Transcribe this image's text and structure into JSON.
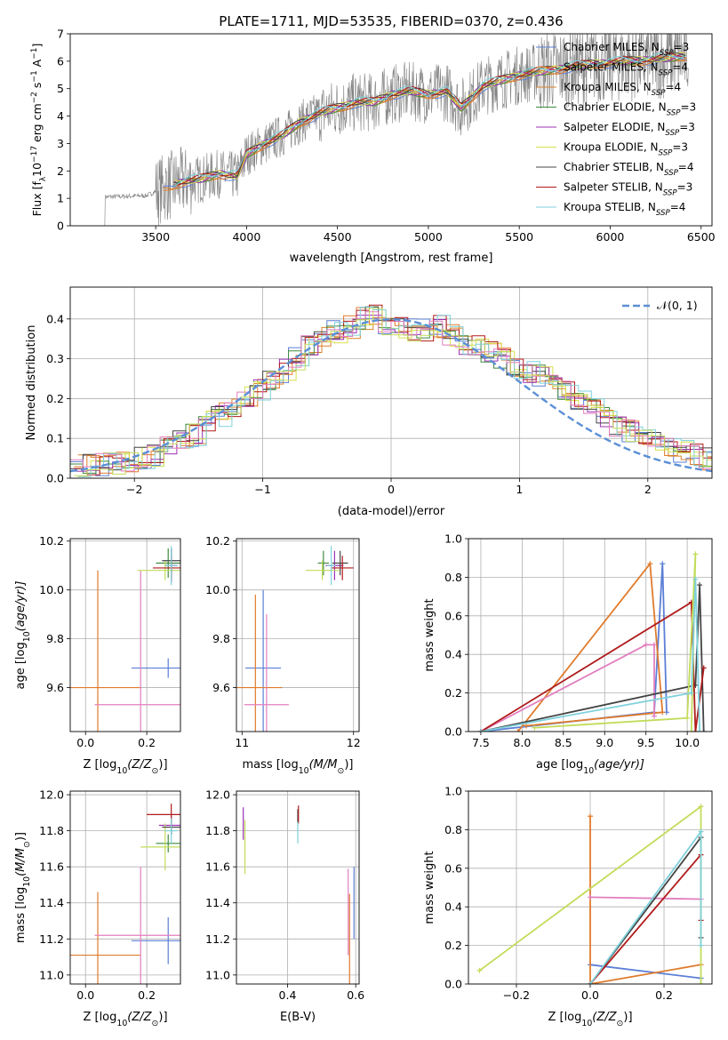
{
  "title": "PLATE=1711, MJD=53535, FIBERID=0370, z=0.436",
  "colors": {
    "chabrier_miles": "#5b7fd6",
    "salpeter_miles": "#e07b2c",
    "kroupa_miles": "#d9822b",
    "chabrier_elodie": "#3f8a3f",
    "salpeter_elodie": "#9b30b5",
    "kroupa_elodie": "#d7e04a",
    "chabrier_stelib": "#444444",
    "salpeter_stelib": "#b01b1b",
    "kroupa_stelib": "#7fd1dc",
    "pink": "#e27fbf",
    "lime": "#c2dc5a",
    "data": "#808080",
    "normal": "#5a8fd6"
  },
  "chart_data": [
    {
      "id": "spectrum",
      "type": "line",
      "xlabel": "wavelength [Angstrom, rest frame]",
      "ylabel": "Flux [f",
      "ylabel_sub": "λ",
      "ylabel_rest": "10",
      "ylabel_sup1": "−17",
      "ylabel_mid": " erg cm",
      "ylabel_sup2": "−2",
      "ylabel_mid2": " s",
      "ylabel_sup3": "−1",
      "ylabel_mid3": " A",
      "ylabel_sup4": "−1",
      "ylabel_end": "]",
      "xlim": [
        3030,
        6560
      ],
      "ylim": [
        0,
        7
      ],
      "xticks": [
        "3500",
        "4000",
        "4500",
        "5000",
        "5500",
        "6000",
        "6500"
      ],
      "xtick_vals": [
        3500,
        4000,
        4500,
        5000,
        5500,
        6000,
        6500
      ],
      "yticks": [
        "0",
        "1",
        "2",
        "3",
        "4",
        "5",
        "6",
        "7"
      ],
      "ytick_vals": [
        0,
        1,
        2,
        3,
        4,
        5,
        6,
        7
      ],
      "legend_position": "top-right",
      "legend": [
        {
          "name": "Chabrier MILES, N",
          "sub": "SSP",
          "val": "=3",
          "color": "chabrier_miles"
        },
        {
          "name": "Salpeter MILES, N",
          "sub": "SSP",
          "val": "=4",
          "color": "salpeter_miles"
        },
        {
          "name": "Kroupa MILES, N",
          "sub": "SSP",
          "val": "=4",
          "color": "kroupa_miles"
        },
        {
          "name": "Chabrier ELODIE, N",
          "sub": "SSP",
          "val": "=3",
          "color": "chabrier_elodie"
        },
        {
          "name": "Salpeter ELODIE, N",
          "sub": "SSP",
          "val": "=3",
          "color": "salpeter_elodie"
        },
        {
          "name": "Kroupa ELODIE, N",
          "sub": "SSP",
          "val": "=3",
          "color": "kroupa_elodie"
        },
        {
          "name": "Chabrier STELIB, N",
          "sub": "SSP",
          "val": "=4",
          "color": "chabrier_stelib"
        },
        {
          "name": "Salpeter STELIB, N",
          "sub": "SSP",
          "val": "=3",
          "color": "salpeter_stelib"
        },
        {
          "name": "Kroupa STELIB, N",
          "sub": "SSP",
          "val": "=4",
          "color": "kroupa_stelib"
        }
      ],
      "model_trend": [
        [
          3220,
          1.05
        ],
        [
          3450,
          1.1
        ],
        [
          3550,
          1.4
        ],
        [
          3650,
          1.6
        ],
        [
          3750,
          1.7
        ],
        [
          3850,
          1.9
        ],
        [
          3950,
          1.8
        ],
        [
          4000,
          2.6
        ],
        [
          4100,
          3.0
        ],
        [
          4200,
          3.3
        ],
        [
          4300,
          3.8
        ],
        [
          4400,
          4.1
        ],
        [
          4500,
          4.3
        ],
        [
          4600,
          4.5
        ],
        [
          4700,
          4.5
        ],
        [
          4800,
          4.8
        ],
        [
          4900,
          4.9
        ],
        [
          5000,
          4.8
        ],
        [
          5100,
          4.9
        ],
        [
          5180,
          4.3
        ],
        [
          5300,
          5.1
        ],
        [
          5500,
          5.5
        ],
        [
          5700,
          5.7
        ],
        [
          5900,
          5.9
        ],
        [
          6100,
          6.0
        ],
        [
          6300,
          6.1
        ],
        [
          6420,
          6.2
        ]
      ]
    },
    {
      "id": "residuals",
      "type": "line",
      "xlabel": "(data-model)/error",
      "ylabel": "Normed distribution",
      "xlim": [
        -2.5,
        2.5
      ],
      "ylim": [
        0,
        0.48
      ],
      "xticks": [
        "−2",
        "−1",
        "0",
        "1",
        "2"
      ],
      "xtick_vals": [
        -2,
        -1,
        0,
        1,
        2
      ],
      "yticks": [
        "0.0",
        "0.1",
        "0.2",
        "0.3",
        "0.4"
      ],
      "ytick_vals": [
        0,
        0.1,
        0.2,
        0.3,
        0.4
      ],
      "legend_position": "top-right",
      "legend_label": "𝒩(0, 1)",
      "bin_width": 0.1,
      "hist_base": [
        0.03,
        0.032,
        0.035,
        0.04,
        0.045,
        0.05,
        0.06,
        0.08,
        0.1,
        0.11,
        0.14,
        0.16,
        0.18,
        0.2,
        0.22,
        0.24,
        0.27,
        0.3,
        0.33,
        0.35,
        0.37,
        0.38,
        0.4,
        0.41,
        0.39,
        0.38,
        0.37,
        0.37,
        0.38,
        0.36,
        0.34,
        0.33,
        0.32,
        0.3,
        0.28,
        0.27,
        0.26,
        0.24,
        0.22,
        0.19,
        0.17,
        0.15,
        0.13,
        0.12,
        0.1,
        0.09,
        0.08,
        0.07,
        0.06,
        0.05
      ]
    },
    {
      "id": "age_vs_Z",
      "type": "scatter",
      "xlabel": "Z [log",
      "xlabel_sub": "10",
      "xlabel_rest": "(Z/Z",
      "xlabel_sub2": "⊙",
      "xlabel_end": ")]",
      "ylabel": "age  [log",
      "ylabel_sub": "10",
      "ylabel_rest": "(age/yr)]",
      "xlim": [
        -0.05,
        0.31
      ],
      "ylim": [
        9.42,
        10.21
      ],
      "xticks": [
        "0.0",
        "0.2"
      ],
      "xtick_vals": [
        0,
        0.2
      ],
      "yticks": [
        "9.6",
        "9.8",
        "10.0",
        "10.2"
      ],
      "ytick_vals": [
        9.6,
        9.8,
        10.0,
        10.2
      ],
      "points": [
        {
          "x": 0.27,
          "y": 9.68,
          "xerr": 0.12,
          "yerr": 0.04,
          "color": "chabrier_miles"
        },
        {
          "x": 0.04,
          "y": 9.6,
          "xerr": 0.14,
          "yerr": 0.48,
          "color": "salpeter_miles"
        },
        {
          "x": 0.18,
          "y": 9.53,
          "xerr": 0.15,
          "yerr": 0.55,
          "color": "pink"
        },
        {
          "x": 0.27,
          "y": 10.11,
          "xerr": 0.04,
          "yerr": 0.06,
          "color": "chabrier_elodie"
        },
        {
          "x": 0.28,
          "y": 10.1,
          "xerr": 0.02,
          "yerr": 0.07,
          "color": "salpeter_elodie"
        },
        {
          "x": 0.26,
          "y": 10.08,
          "xerr": 0.09,
          "yerr": 0.04,
          "color": "lime"
        },
        {
          "x": 0.28,
          "y": 10.12,
          "xerr": 0.03,
          "yerr": 0.05,
          "color": "chabrier_stelib"
        },
        {
          "x": 0.28,
          "y": 10.09,
          "xerr": 0.06,
          "yerr": 0.05,
          "color": "salpeter_stelib"
        },
        {
          "x": 0.28,
          "y": 10.1,
          "xerr": 0.02,
          "yerr": 0.08,
          "color": "kroupa_stelib"
        }
      ]
    },
    {
      "id": "age_vs_mass",
      "type": "scatter",
      "xlabel": "mass [log",
      "xlabel_sub": "10",
      "xlabel_rest": "(M/M",
      "xlabel_sub2": "⊙",
      "xlabel_end": ")]",
      "xlim": [
        10.95,
        12.05
      ],
      "ylim": [
        9.42,
        10.21
      ],
      "xticks": [
        "11",
        "12"
      ],
      "xtick_vals": [
        11,
        12
      ],
      "yticks": [
        "9.6",
        "9.8",
        "10.0",
        "10.2"
      ],
      "ytick_vals": [
        9.6,
        9.8,
        10.0,
        10.2
      ],
      "points": [
        {
          "x": 11.19,
          "y": 9.68,
          "xerr": 0.16,
          "yerr": 0.32,
          "color": "chabrier_miles"
        },
        {
          "x": 11.12,
          "y": 9.6,
          "xerr": 0.24,
          "yerr": 0.38,
          "color": "salpeter_miles"
        },
        {
          "x": 11.22,
          "y": 9.53,
          "xerr": 0.2,
          "yerr": 0.37,
          "color": "pink"
        },
        {
          "x": 11.73,
          "y": 10.11,
          "xerr": 0.05,
          "yerr": 0.05,
          "color": "chabrier_elodie"
        },
        {
          "x": 11.83,
          "y": 10.1,
          "xerr": 0.08,
          "yerr": 0.06,
          "color": "salpeter_elodie"
        },
        {
          "x": 11.72,
          "y": 10.08,
          "xerr": 0.15,
          "yerr": 0.04,
          "color": "lime"
        },
        {
          "x": 11.88,
          "y": 10.11,
          "xerr": 0.07,
          "yerr": 0.05,
          "color": "chabrier_stelib"
        },
        {
          "x": 11.9,
          "y": 10.09,
          "xerr": 0.1,
          "yerr": 0.05,
          "color": "salpeter_stelib"
        },
        {
          "x": 11.8,
          "y": 10.1,
          "xerr": 0.04,
          "yerr": 0.08,
          "color": "kroupa_stelib"
        }
      ]
    },
    {
      "id": "weight_vs_age",
      "type": "line",
      "xlabel": "age  [log",
      "xlabel_sub": "10",
      "xlabel_rest": "(age/yr)]",
      "ylabel": "mass weight",
      "xlim": [
        7.35,
        10.3
      ],
      "ylim": [
        0,
        1
      ],
      "xticks": [
        "7.5",
        "8.0",
        "8.5",
        "9.0",
        "9.5",
        "10.0"
      ],
      "xtick_vals": [
        7.5,
        8.0,
        8.5,
        9.0,
        9.5,
        10.0
      ],
      "yticks": [
        "0.0",
        "0.2",
        "0.4",
        "0.6",
        "0.8",
        "1.0"
      ],
      "ytick_vals": [
        0,
        0.2,
        0.4,
        0.6,
        0.8,
        1.0
      ],
      "series": [
        {
          "color": "chabrier_miles",
          "points": [
            [
              7.5,
              0.0
            ],
            [
              9.6,
              0.1
            ],
            [
              9.7,
              0.87
            ],
            [
              9.75,
              0.1
            ]
          ]
        },
        {
          "color": "salpeter_miles",
          "points": [
            [
              7.95,
              0.0
            ],
            [
              9.55,
              0.87
            ],
            [
              9.7,
              0.1
            ],
            [
              8.05,
              0.03
            ]
          ]
        },
        {
          "color": "pink",
          "points": [
            [
              7.5,
              0.0
            ],
            [
              9.5,
              0.45
            ],
            [
              9.6,
              0.45
            ],
            [
              9.6,
              0.08
            ]
          ]
        },
        {
          "color": "chabrier_stelib",
          "points": [
            [
              7.5,
              0.0
            ],
            [
              10.1,
              0.24
            ],
            [
              10.15,
              0.76
            ],
            [
              10.2,
              0.0
            ]
          ]
        },
        {
          "color": "salpeter_stelib",
          "points": [
            [
              7.5,
              0.0
            ],
            [
              10.05,
              0.67
            ],
            [
              10.1,
              0.0
            ],
            [
              10.2,
              0.33
            ]
          ]
        },
        {
          "color": "lime",
          "points": [
            [
              8.15,
              0.02
            ],
            [
              10.0,
              0.07
            ],
            [
              10.1,
              0.92
            ],
            [
              10.05,
              0.0
            ]
          ]
        },
        {
          "color": "kroupa_stelib",
          "points": [
            [
              7.5,
              0.0
            ],
            [
              10.05,
              0.2
            ],
            [
              10.1,
              0.79
            ],
            [
              10.15,
              0.0
            ]
          ]
        }
      ]
    },
    {
      "id": "mass_vs_Z",
      "type": "scatter",
      "xlabel": "Z [log",
      "xlabel_sub": "10",
      "xlabel_rest": "(Z/Z",
      "xlabel_sub2": "⊙",
      "xlabel_end": ")]",
      "ylabel": "mass [log",
      "ylabel_sub": "10",
      "ylabel_rest": "(M/M",
      "ylabel_sub2": "⊙",
      "ylabel_end": ")]",
      "xlim": [
        -0.05,
        0.31
      ],
      "ylim": [
        10.95,
        12.02
      ],
      "xticks": [
        "0.0",
        "0.2"
      ],
      "xtick_vals": [
        0,
        0.2
      ],
      "yticks": [
        "11.0",
        "11.2",
        "11.4",
        "11.6",
        "11.8",
        "12.0"
      ],
      "ytick_vals": [
        11.0,
        11.2,
        11.4,
        11.6,
        11.8,
        12.0
      ],
      "points": [
        {
          "x": 0.27,
          "y": 11.19,
          "xerr": 0.12,
          "yerr": 0.13,
          "color": "chabrier_miles"
        },
        {
          "x": 0.04,
          "y": 11.11,
          "xerr": 0.14,
          "yerr": 0.35,
          "color": "salpeter_miles"
        },
        {
          "x": 0.18,
          "y": 11.22,
          "xerr": 0.15,
          "yerr": 0.38,
          "color": "pink"
        },
        {
          "x": 0.27,
          "y": 11.73,
          "xerr": 0.04,
          "yerr": 0.05,
          "color": "chabrier_elodie"
        },
        {
          "x": 0.28,
          "y": 11.83,
          "xerr": 0.04,
          "yerr": 0.05,
          "color": "salpeter_elodie"
        },
        {
          "x": 0.26,
          "y": 11.71,
          "xerr": 0.08,
          "yerr": 0.13,
          "color": "lime"
        },
        {
          "x": 0.28,
          "y": 11.82,
          "xerr": 0.03,
          "yerr": 0.04,
          "color": "chabrier_stelib"
        },
        {
          "x": 0.28,
          "y": 11.89,
          "xerr": 0.08,
          "yerr": 0.06,
          "color": "salpeter_stelib"
        },
        {
          "x": 0.28,
          "y": 11.8,
          "xerr": 0.02,
          "yerr": 0.07,
          "color": "kroupa_stelib"
        }
      ]
    },
    {
      "id": "mass_vs_ebv",
      "type": "scatter",
      "xlabel": "E(B-V)",
      "xlim": [
        0.25,
        0.61
      ],
      "ylim": [
        10.95,
        12.02
      ],
      "xticks": [
        "0.4",
        "0.6"
      ],
      "xtick_vals": [
        0.4,
        0.6
      ],
      "yticks": [
        "11.0",
        "11.2",
        "11.4",
        "11.6",
        "11.8",
        "12.0"
      ],
      "ytick_vals": [
        11.0,
        11.2,
        11.4,
        11.6,
        11.8,
        12.0
      ],
      "points": [
        {
          "x": 0.595,
          "y": 11.4,
          "xerr": 0,
          "yerr": 0.2,
          "color": "chabrier_miles"
        },
        {
          "x": 0.582,
          "y": 11.2,
          "xerr": 0,
          "yerr": 0.25,
          "color": "salpeter_miles"
        },
        {
          "x": 0.578,
          "y": 11.35,
          "xerr": 0,
          "yerr": 0.24,
          "color": "pink"
        },
        {
          "x": 0.27,
          "y": 11.84,
          "xerr": 0,
          "yerr": 0.09,
          "color": "salpeter_elodie"
        },
        {
          "x": 0.275,
          "y": 11.71,
          "xerr": 0,
          "yerr": 0.15,
          "color": "lime"
        },
        {
          "x": 0.43,
          "y": 11.88,
          "xerr": 0,
          "yerr": 0.04,
          "color": "chabrier_stelib"
        },
        {
          "x": 0.432,
          "y": 11.89,
          "xerr": 0,
          "yerr": 0.05,
          "color": "salpeter_stelib"
        },
        {
          "x": 0.43,
          "y": 11.79,
          "xerr": 0,
          "yerr": 0.06,
          "color": "kroupa_stelib"
        }
      ]
    },
    {
      "id": "weight_vs_Z",
      "type": "line",
      "xlabel": "Z [log",
      "xlabel_sub": "10",
      "xlabel_rest": "(Z/Z",
      "xlabel_sub2": "⊙",
      "xlabel_end": ")]",
      "ylabel": "mass weight",
      "xlim": [
        -0.33,
        0.33
      ],
      "ylim": [
        0,
        1
      ],
      "xticks": [
        "−0.2",
        "0.0",
        "0.2"
      ],
      "xtick_vals": [
        -0.2,
        0,
        0.2
      ],
      "yticks": [
        "0.0",
        "0.2",
        "0.4",
        "0.6",
        "0.8",
        "1.0"
      ],
      "ytick_vals": [
        0,
        0.2,
        0.4,
        0.6,
        0.8,
        1.0
      ],
      "series": [
        {
          "color": "chabrier_miles",
          "points": [
            [
              0.0,
              0.1
            ],
            [
              0.3,
              0.03
            ]
          ]
        },
        {
          "color": "salpeter_miles",
          "points": [
            [
              0.0,
              0.87
            ],
            [
              0.0,
              0.0
            ],
            [
              0.3,
              0.1
            ]
          ]
        },
        {
          "color": "pink",
          "points": [
            [
              0.0,
              0.45
            ],
            [
              0.3,
              0.44
            ]
          ]
        },
        {
          "color": "chabrier_stelib",
          "points": [
            [
              0.0,
              0.0
            ],
            [
              0.3,
              0.76
            ],
            [
              0.3,
              0.24
            ]
          ]
        },
        {
          "color": "salpeter_stelib",
          "points": [
            [
              0.0,
              0.0
            ],
            [
              0.3,
              0.67
            ],
            [
              0.3,
              0.33
            ]
          ]
        },
        {
          "color": "lime",
          "points": [
            [
              -0.3,
              0.07
            ],
            [
              0.3,
              0.92
            ],
            [
              0.3,
              0.0
            ]
          ]
        },
        {
          "color": "kroupa_stelib",
          "points": [
            [
              0.0,
              0.0
            ],
            [
              0.3,
              0.79
            ],
            [
              0.3,
              0.2
            ]
          ]
        }
      ]
    }
  ]
}
